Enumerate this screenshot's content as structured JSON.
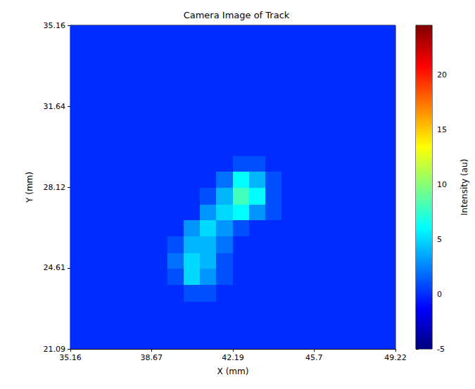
{
  "chart_data": {
    "type": "heatmap",
    "title": "Camera Image of Track",
    "x_label": "X (mm)",
    "y_label": "Y (mm)",
    "xlim": [
      35.16,
      49.22
    ],
    "ylim": [
      21.09,
      35.16
    ],
    "xticks": [
      35.16,
      38.67,
      42.19,
      45.7,
      49.22
    ],
    "yticks": [
      21.09,
      24.61,
      28.12,
      31.64,
      35.16
    ],
    "x": [
      35.51,
      36.21,
      36.92,
      37.62,
      38.32,
      39.03,
      39.73,
      40.43,
      41.14,
      41.84,
      42.54,
      43.24,
      43.95,
      44.65,
      45.35,
      46.06,
      46.76,
      47.46,
      48.17,
      48.87
    ],
    "y": [
      21.44,
      22.15,
      22.85,
      23.55,
      24.26,
      24.96,
      25.66,
      26.37,
      27.07,
      27.77,
      28.48,
      29.18,
      29.88,
      30.59,
      31.29,
      31.99,
      32.7,
      33.4,
      34.11,
      34.81
    ],
    "values": [
      [
        0,
        0,
        0,
        0,
        0,
        0,
        0,
        0,
        0,
        0,
        0,
        0,
        0,
        0,
        0,
        0,
        0,
        0,
        0,
        0
      ],
      [
        0,
        0,
        0,
        0,
        0,
        0,
        0,
        0,
        0,
        0,
        0,
        0,
        0,
        0,
        0,
        0,
        0,
        0,
        0,
        0
      ],
      [
        0,
        0,
        0,
        0,
        0,
        0,
        0,
        0,
        0,
        0,
        0,
        0,
        0,
        0,
        0,
        0,
        0,
        0,
        0,
        0
      ],
      [
        0,
        0,
        0,
        0,
        0,
        0,
        0,
        1,
        1,
        0,
        0,
        0,
        0,
        0,
        0,
        0,
        0,
        0,
        0,
        0
      ],
      [
        0,
        0,
        0,
        0,
        0,
        0,
        1,
        5,
        3,
        1,
        0,
        0,
        0,
        0,
        0,
        0,
        0,
        0,
        0,
        0
      ],
      [
        0,
        0,
        0,
        0,
        0,
        0,
        2,
        5,
        4,
        1,
        0,
        0,
        0,
        0,
        0,
        0,
        0,
        0,
        0,
        0
      ],
      [
        0,
        0,
        0,
        0,
        0,
        0,
        1,
        4,
        4,
        2,
        0,
        0,
        0,
        0,
        0,
        0,
        0,
        0,
        0,
        0
      ],
      [
        0,
        0,
        0,
        0,
        0,
        0,
        0,
        3,
        5,
        3,
        1,
        0,
        0,
        0,
        0,
        0,
        0,
        0,
        0,
        0
      ],
      [
        0,
        0,
        0,
        0,
        0,
        0,
        0,
        0,
        3,
        5,
        6,
        3,
        1,
        0,
        0,
        0,
        0,
        0,
        0,
        0
      ],
      [
        0,
        0,
        0,
        0,
        0,
        0,
        0,
        0,
        1,
        4,
        8,
        6,
        1,
        0,
        0,
        0,
        0,
        0,
        0,
        0
      ],
      [
        0,
        0,
        0,
        0,
        0,
        0,
        0,
        0,
        0,
        2,
        6,
        4,
        1,
        0,
        0,
        0,
        0,
        0,
        0,
        0
      ],
      [
        0,
        0,
        0,
        0,
        0,
        0,
        0,
        0,
        0,
        0,
        1,
        1,
        0,
        0,
        0,
        0,
        0,
        0,
        0,
        0
      ],
      [
        0,
        0,
        0,
        0,
        0,
        0,
        0,
        0,
        0,
        0,
        0,
        0,
        0,
        0,
        0,
        0,
        0,
        0,
        0,
        0
      ],
      [
        0,
        0,
        0,
        0,
        0,
        0,
        0,
        0,
        0,
        0,
        0,
        0,
        0,
        0,
        0,
        0,
        0,
        0,
        0,
        0
      ],
      [
        0,
        0,
        0,
        0,
        0,
        0,
        0,
        0,
        0,
        0,
        0,
        0,
        0,
        0,
        0,
        0,
        0,
        0,
        0,
        0
      ],
      [
        0,
        0,
        0,
        0,
        0,
        0,
        0,
        0,
        0,
        0,
        0,
        0,
        0,
        0,
        0,
        0,
        0,
        0,
        0,
        0
      ],
      [
        0,
        0,
        0,
        0,
        0,
        0,
        0,
        0,
        0,
        0,
        0,
        0,
        0,
        0,
        0,
        0,
        0,
        0,
        0,
        0
      ],
      [
        0,
        0,
        0,
        0,
        0,
        0,
        0,
        0,
        0,
        0,
        0,
        0,
        0,
        0,
        0,
        0,
        0,
        0,
        0,
        0
      ],
      [
        0,
        0,
        0,
        0,
        0,
        0,
        0,
        0,
        0,
        0,
        0,
        0,
        0,
        0,
        0,
        0,
        0,
        0,
        0,
        0
      ],
      [
        0,
        0,
        0,
        0,
        0,
        0,
        0,
        0,
        0,
        0,
        0,
        0,
        0,
        0,
        0,
        0,
        0,
        0,
        0,
        0
      ]
    ],
    "colorbar": {
      "range": [
        -5,
        24.5
      ],
      "ticks": [
        -5,
        0,
        5,
        10,
        15,
        20
      ],
      "label": "Intensity (au)"
    },
    "grid": false
  }
}
